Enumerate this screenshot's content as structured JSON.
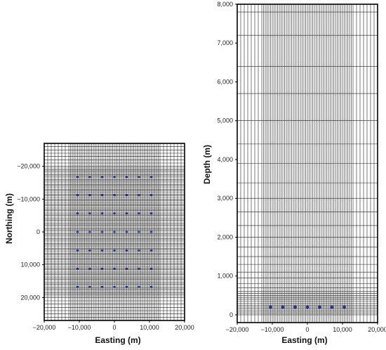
{
  "chart_data": [
    {
      "type": "scatter",
      "panel": "plan-view",
      "xlabel": "Easting (m)",
      "ylabel": "Northing (m)",
      "xlim": [
        -20000,
        20000
      ],
      "ylim": [
        -27000,
        27000
      ],
      "xticks": [
        -20000,
        -10000,
        0,
        10000,
        20000
      ],
      "xtick_labels": [
        "−20,000",
        "−10,000",
        "0",
        "10,000",
        "20,000"
      ],
      "yticks": [
        20000,
        10000,
        0,
        -10000,
        -20000
      ],
      "ytick_labels": [
        "20,000",
        "10,000",
        "0",
        "−10,000",
        "−20,000"
      ],
      "grid": true,
      "grid_x_lines": [
        -20000,
        -19000,
        -18000,
        -17000,
        -16000,
        -15000,
        -14000,
        -13000,
        -12500,
        -12000,
        -11500,
        -11000,
        -10500,
        -10000,
        -9500,
        -9000,
        -8500,
        -8000,
        -7500,
        -7000,
        -6500,
        -6000,
        -5500,
        -5000,
        -4500,
        -4000,
        -3500,
        -3000,
        -2500,
        -2000,
        -1500,
        -1000,
        -500,
        0,
        500,
        1000,
        1500,
        2000,
        2500,
        3000,
        3500,
        4000,
        4500,
        5000,
        5500,
        6000,
        6500,
        7000,
        7500,
        8000,
        8500,
        9000,
        9500,
        10000,
        10500,
        11000,
        11500,
        12000,
        12500,
        13000,
        14000,
        15000,
        16000,
        17000,
        18000,
        19000,
        20000
      ],
      "grid_y_lines": [
        27000,
        26000,
        25000,
        24000,
        23000,
        22000,
        21000,
        20000,
        19500,
        19000,
        18500,
        18000,
        17500,
        17000,
        16500,
        16000,
        15500,
        15000,
        14500,
        14000,
        13500,
        13000,
        12500,
        12000,
        11500,
        11000,
        10500,
        10000,
        9500,
        9000,
        8500,
        8000,
        7500,
        7000,
        6500,
        6000,
        5500,
        5000,
        4500,
        4000,
        3500,
        3000,
        2500,
        2000,
        1500,
        1000,
        500,
        0,
        -500,
        -1000,
        -1500,
        -2000,
        -2500,
        -3000,
        -3500,
        -4000,
        -4500,
        -5000,
        -5500,
        -6000,
        -6500,
        -7000,
        -7500,
        -8000,
        -8500,
        -9000,
        -9500,
        -10000,
        -10500,
        -11000,
        -11500,
        -12000,
        -12500,
        -13000,
        -13500,
        -14000,
        -14500,
        -15000,
        -15500,
        -16000,
        -16500,
        -17000,
        -17500,
        -18000,
        -18500,
        -19000,
        -19500,
        -20000,
        -21000,
        -22000,
        -23000,
        -24000,
        -25000,
        -26000,
        -27000
      ],
      "point_x": [
        -10500,
        -7000,
        -3500,
        0,
        3500,
        7000,
        10500
      ],
      "point_y": [
        16750,
        11200,
        5600,
        0,
        -5600,
        -11200,
        -16750
      ],
      "point_color": "#1e2d9e"
    },
    {
      "type": "scatter",
      "panel": "cross-section",
      "xlabel": "Easting (m)",
      "ylabel": "Depth (m)",
      "xlim": [
        -20000,
        20000
      ],
      "ylim": [
        8000,
        -200
      ],
      "y_inverted": true,
      "xticks": [
        -20000,
        -10000,
        0,
        10000,
        20000
      ],
      "xtick_labels": [
        "−20,000",
        "−10,000",
        "0",
        "10,000",
        "20,000"
      ],
      "yticks": [
        0,
        1000,
        2000,
        3000,
        4000,
        5000,
        6000,
        7000,
        8000
      ],
      "ytick_labels": [
        "0",
        "1,000",
        "2,000",
        "3,000",
        "4,000",
        "5,000",
        "6,000",
        "7,000",
        "8,000"
      ],
      "grid": true,
      "grid_x_lines": [
        -20000,
        -19000,
        -18000,
        -17000,
        -16000,
        -15000,
        -14000,
        -13000,
        -12500,
        -12000,
        -11500,
        -11000,
        -10500,
        -10000,
        -9500,
        -9000,
        -8500,
        -8000,
        -7500,
        -7000,
        -6500,
        -6000,
        -5500,
        -5000,
        -4500,
        -4000,
        -3500,
        -3000,
        -2500,
        -2000,
        -1500,
        -1000,
        -500,
        0,
        500,
        1000,
        1500,
        2000,
        2500,
        3000,
        3500,
        4000,
        4500,
        5000,
        5500,
        6000,
        6500,
        7000,
        7500,
        8000,
        8500,
        9000,
        9500,
        10000,
        10500,
        11000,
        11500,
        12000,
        12500,
        13000,
        14000,
        15000,
        16000,
        17000,
        18000,
        19000,
        20000
      ],
      "grid_y_lines": [
        -200,
        0,
        50,
        100,
        150,
        200,
        250,
        300,
        350,
        400,
        450,
        500,
        550,
        600,
        700,
        800,
        950,
        1100,
        1300,
        1500,
        1750,
        2000,
        2300,
        2650,
        3000,
        3400,
        3900,
        4400,
        5000,
        5700,
        6400,
        7200,
        7800,
        8000
      ],
      "points": [
        {
          "x": -10500,
          "y": 200
        },
        {
          "x": -7000,
          "y": 200
        },
        {
          "x": -3500,
          "y": 200
        },
        {
          "x": 0,
          "y": 200
        },
        {
          "x": 3500,
          "y": 200
        },
        {
          "x": 7000,
          "y": 200
        },
        {
          "x": 10500,
          "y": 200
        }
      ],
      "point_color": "#1e2d9e"
    }
  ]
}
